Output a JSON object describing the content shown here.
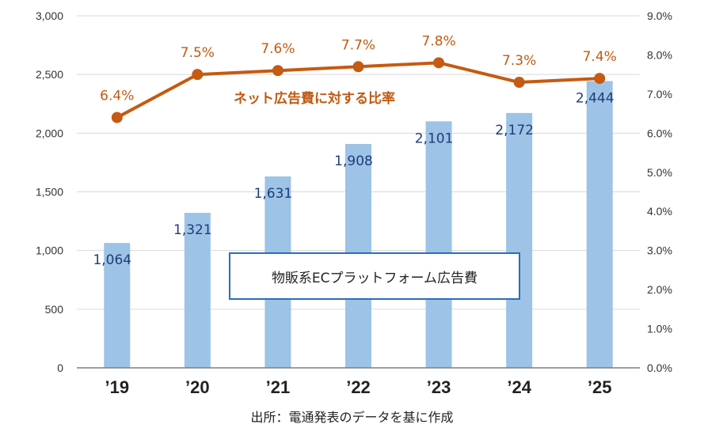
{
  "chart_data": {
    "type": "bar+line",
    "categories": [
      "’19",
      "’20",
      "’21",
      "’22",
      "’23",
      "’24",
      "’25"
    ],
    "series": [
      {
        "name": "物販系ECプラットフォーム広告費",
        "kind": "bar",
        "axis": "left",
        "values": [
          1064,
          1321,
          1631,
          1908,
          2101,
          2172,
          2444
        ],
        "labels": [
          "1,064",
          "1,321",
          "1,631",
          "1,908",
          "2,101",
          "2,172",
          "2,444"
        ],
        "color": "#9dc3e6"
      },
      {
        "name": "ネット広告費に対する比率",
        "kind": "line",
        "axis": "right",
        "values": [
          6.4,
          7.5,
          7.6,
          7.7,
          7.8,
          7.3,
          7.4
        ],
        "labels": [
          "6.4%",
          "7.5%",
          "7.6%",
          "7.7%",
          "7.8%",
          "7.3%",
          "7.4%"
        ],
        "color": "#c55a11"
      }
    ],
    "y_left": {
      "ylim": [
        0,
        3000
      ],
      "ticks": [
        0,
        500,
        1000,
        1500,
        2000,
        2500,
        3000
      ],
      "tick_labels": [
        "0",
        "500",
        "1,000",
        "1,500",
        "2,000",
        "2,500",
        "3,000"
      ]
    },
    "y_right": {
      "ylim": [
        0,
        9.0
      ],
      "ticks": [
        0,
        1,
        2,
        3,
        4,
        5,
        6,
        7,
        8,
        9
      ],
      "tick_labels": [
        "0.0%",
        "1.0%",
        "2.0%",
        "3.0%",
        "4.0%",
        "5.0%",
        "6.0%",
        "7.0%",
        "8.0%",
        "9.0%"
      ]
    },
    "grid": true,
    "legend_text": "物販系ECプラットフォーム広告費",
    "line_caption": "ネット広告費に対する比率"
  },
  "source_note": "出所：電通発表のデータを基に作成"
}
